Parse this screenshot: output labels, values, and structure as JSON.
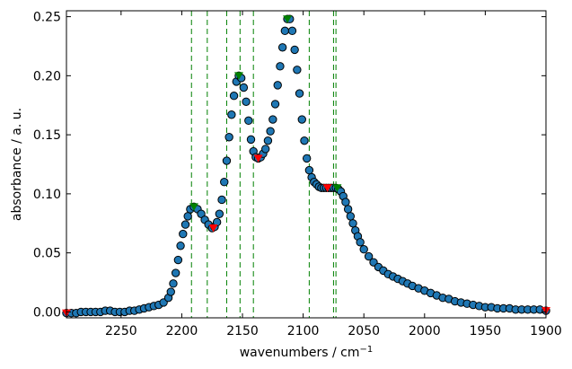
{
  "chart_data": {
    "type": "scatter",
    "xlabel": "wavenumbers / cm",
    "xlabel_sup": "−1",
    "ylabel": "absorbance / a. u.",
    "xlim": [
      2295,
      1900
    ],
    "ylim": [
      -0.005,
      0.255
    ],
    "x_reversed": true,
    "grid": false,
    "x_ticks": [
      2250,
      2200,
      2150,
      2100,
      2050,
      2000,
      1950,
      1900
    ],
    "x_tick_labels": [
      "2250",
      "2200",
      "2150",
      "2100",
      "2050",
      "2000",
      "1950",
      "1900"
    ],
    "y_ticks": [
      0.0,
      0.05,
      0.1,
      0.15,
      0.2,
      0.25
    ],
    "y_tick_labels": [
      "0.00",
      "0.05",
      "0.10",
      "0.15",
      "0.20",
      "0.25"
    ],
    "series": [
      {
        "role": "data",
        "marker": "circle",
        "color": "#1f77b4",
        "edge_color": "#000000",
        "x": [
          2295,
          2291,
          2287,
          2283,
          2279,
          2275,
          2271,
          2267,
          2263,
          2259,
          2255,
          2251,
          2247,
          2243,
          2239,
          2235,
          2231,
          2227,
          2223,
          2219,
          2215,
          2211,
          2209,
          2207,
          2205,
          2203,
          2201,
          2199,
          2197,
          2195,
          2193,
          2190,
          2187,
          2184,
          2181,
          2178,
          2175,
          2173,
          2171,
          2169,
          2167,
          2165,
          2163,
          2161,
          2159,
          2157,
          2155,
          2153,
          2151,
          2149,
          2147,
          2145,
          2143,
          2141,
          2139,
          2137,
          2135,
          2133,
          2131,
          2129,
          2127,
          2125,
          2123,
          2121,
          2119,
          2117,
          2115,
          2113,
          2111,
          2109,
          2107,
          2105,
          2103,
          2101,
          2099,
          2097,
          2095,
          2093,
          2091,
          2089,
          2087,
          2085,
          2083,
          2081,
          2079,
          2077,
          2075,
          2073,
          2071,
          2069,
          2067,
          2065,
          2063,
          2061,
          2059,
          2057,
          2055,
          2053,
          2050,
          2046,
          2042,
          2038,
          2034,
          2030,
          2026,
          2022,
          2018,
          2014,
          2010,
          2005,
          2000,
          1995,
          1990,
          1985,
          1980,
          1975,
          1970,
          1965,
          1960,
          1955,
          1950,
          1945,
          1940,
          1935,
          1930,
          1925,
          1920,
          1915,
          1910,
          1905,
          1900
        ],
        "y": [
          -0.001,
          -0.001,
          -0.001,
          0,
          0,
          0,
          0,
          0,
          0.001,
          0.001,
          0,
          0,
          0,
          0.001,
          0.001,
          0.002,
          0.003,
          0.004,
          0.005,
          0.006,
          0.008,
          0.012,
          0.017,
          0.024,
          0.033,
          0.044,
          0.056,
          0.066,
          0.074,
          0.081,
          0.087,
          0.089,
          0.087,
          0.083,
          0.078,
          0.074,
          0.071,
          0.072,
          0.076,
          0.083,
          0.095,
          0.11,
          0.128,
          0.148,
          0.167,
          0.183,
          0.195,
          0.2,
          0.198,
          0.19,
          0.178,
          0.162,
          0.146,
          0.136,
          0.131,
          0.13,
          0.131,
          0.134,
          0.138,
          0.145,
          0.153,
          0.163,
          0.176,
          0.192,
          0.208,
          0.224,
          0.238,
          0.248,
          0.248,
          0.238,
          0.222,
          0.205,
          0.185,
          0.163,
          0.145,
          0.13,
          0.12,
          0.114,
          0.11,
          0.108,
          0.106,
          0.105,
          0.105,
          0.105,
          0.105,
          0.105,
          0.105,
          0.105,
          0.104,
          0.102,
          0.098,
          0.093,
          0.087,
          0.081,
          0.075,
          0.069,
          0.064,
          0.059,
          0.053,
          0.047,
          0.042,
          0.038,
          0.035,
          0.032,
          0.03,
          0.028,
          0.026,
          0.024,
          0.022,
          0.02,
          0.018,
          0.016,
          0.014,
          0.012,
          0.011,
          0.009,
          0.008,
          0.007,
          0.006,
          0.005,
          0.004,
          0.004,
          0.003,
          0.003,
          0.003,
          0.002,
          0.002,
          0.002,
          0.002,
          0.002,
          0.001
        ]
      },
      {
        "role": "maxima",
        "marker": "triangle-down",
        "color": "#008000",
        "x": [
          2190,
          2153,
          2113,
          2072
        ],
        "y": [
          0.089,
          0.2,
          0.248,
          0.105
        ]
      },
      {
        "role": "minima",
        "marker": "triangle-down",
        "color": "#ff0000",
        "x": [
          2295,
          2174,
          2137,
          2080,
          1900
        ],
        "y": [
          -0.001,
          0.071,
          0.13,
          0.105,
          0.001
        ]
      }
    ],
    "vertical_lines": {
      "style": "dashed",
      "color": "#008000",
      "x": [
        2192,
        2179,
        2163,
        2152,
        2141,
        2095,
        2075,
        2073
      ]
    }
  }
}
